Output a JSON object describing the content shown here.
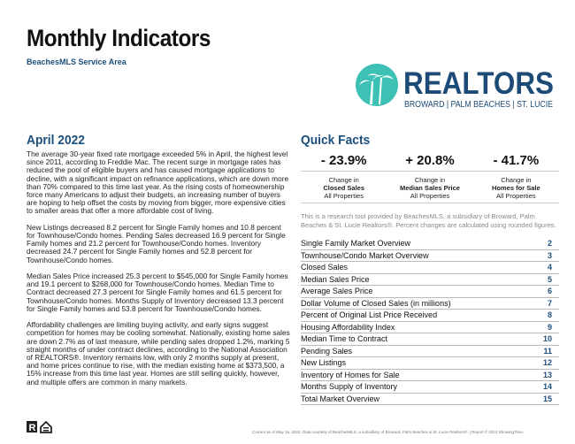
{
  "header": {
    "title": "Monthly Indicators",
    "subtitle": "BeachesMLS Service Area"
  },
  "logo": {
    "brand": "REALTORS",
    "tagline": "BROWARD | PALM BEACHES | ST. LUCIE",
    "colors": {
      "teal": "#3dc1b4",
      "navy": "#1d4b78"
    }
  },
  "left": {
    "heading": "April 2022",
    "paragraphs": [
      "The average 30-year fixed rate mortgage exceeded 5% in April, the highest level since 2011, according to Freddie Mac. The recent surge in mortgage rates has reduced the pool of eligible buyers and has caused mortgage applications to decline, with a significant impact on refinance applications, which are down more than 70% compared to this time last year. As the rising costs of homeownership force many Americans to adjust their budgets, an increasing number of buyers are hoping to help offset the costs by moving from bigger, more expensive cities to smaller areas that offer a more affordable cost of living.",
      "New Listings decreased 8.2 percent for Single Family homes and 10.8 percent for Townhouse/Condo homes. Pending Sales decreased 16.9 percent for Single Family homes and 21.2 percent for Townhouse/Condo homes. Inventory decreased 24.7 percent for Single Family homes and 52.8 percent for Townhouse/Condo homes.",
      "Median Sales Price increased 25.3 percent to $545,000 for Single Family homes and 19.1 percent to $268,000 for Townhouse/Condo homes. Median Time to Contract decreased 27.3 percent for Single Family homes and 61.5 percent for Townhouse/Condo homes. Months Supply of Inventory decreased 13.3 percent for Single Family homes and 53.8 percent for Townhouse/Condo homes.",
      "Affordability challenges are limiting buying activity, and early signs suggest competition for homes may be cooling somewhat. Nationally, existing home sales are down 2.7% as of last measure, while pending sales dropped 1.2%, marking 5 straight months of under contract declines, according to the National Association of REALTORS®. Inventory remains low, with only 2 months supply at present, and home prices continue to rise, with the median existing home at $373,500, a 15% increase from this time last year. Homes are still selling quickly, however, and multiple offers are common in many markets."
    ]
  },
  "quick_facts": {
    "heading": "Quick Facts",
    "items": [
      {
        "value": "- 23.9%",
        "line1": "Change in",
        "metric": "Closed Sales",
        "line3": "All Properties"
      },
      {
        "value": "+ 20.8%",
        "line1": "Change in",
        "metric": "Median Sales Price",
        "line3": "All Properties"
      },
      {
        "value": "- 41.7%",
        "line1": "Change in",
        "metric": "Homes for Sale",
        "line3": "All Properties"
      }
    ],
    "note": "This is a research tool provided by BeachesMLS, a subsidiary of Broward, Palm Beaches & St. Lucie Realtors®. Percent changes are calculated using rounded figures."
  },
  "toc": [
    {
      "label": "Single Family Market Overview",
      "page": "2"
    },
    {
      "label": "Townhouse/Condo Market Overview",
      "page": "3"
    },
    {
      "label": "Closed Sales",
      "page": "4"
    },
    {
      "label": "Median Sales Price",
      "page": "5"
    },
    {
      "label": "Average Sales Price",
      "page": "6"
    },
    {
      "label": "Dollar Volume of Closed Sales (in millions)",
      "page": "7"
    },
    {
      "label": "Percent of Original List Price Received",
      "page": "8"
    },
    {
      "label": "Housing Affordability Index",
      "page": "9"
    },
    {
      "label": "Median Time to Contract",
      "page": "10"
    },
    {
      "label": "Pending Sales",
      "page": "11"
    },
    {
      "label": "New Listings",
      "page": "12"
    },
    {
      "label": "Inventory of Homes for Sale",
      "page": "13"
    },
    {
      "label": "Months Supply of Inventory",
      "page": "14"
    },
    {
      "label": "Total Market Overview",
      "page": "15"
    }
  ],
  "footer": {
    "text": "Current as of May 16, 2022. Data courtesy of BeachesMLS, a subsidiary of Broward, Palm Beaches & St. Lucie Realtors®. | Report © 2022 ShowingTime.",
    "icons": [
      "realtor-r-icon",
      "equal-housing-icon"
    ]
  }
}
